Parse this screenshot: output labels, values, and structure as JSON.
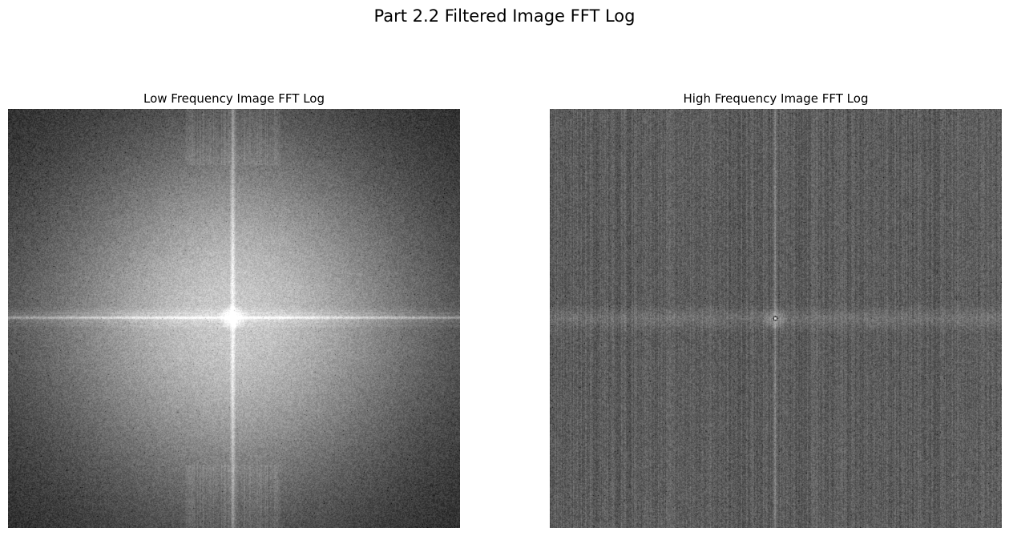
{
  "figure": {
    "suptitle": "Part 2.2 Filtered Image FFT Log"
  },
  "panels": [
    {
      "title": "Low Frequency Image FFT Log",
      "kind": "low-frequency",
      "colormap": "gray"
    },
    {
      "title": "High Frequency Image FFT Log",
      "kind": "high-frequency",
      "colormap": "gray"
    }
  ],
  "colors": {
    "background": "#ffffff",
    "low_base": "#3a3a3a",
    "high_base": "#5c5c5c"
  }
}
